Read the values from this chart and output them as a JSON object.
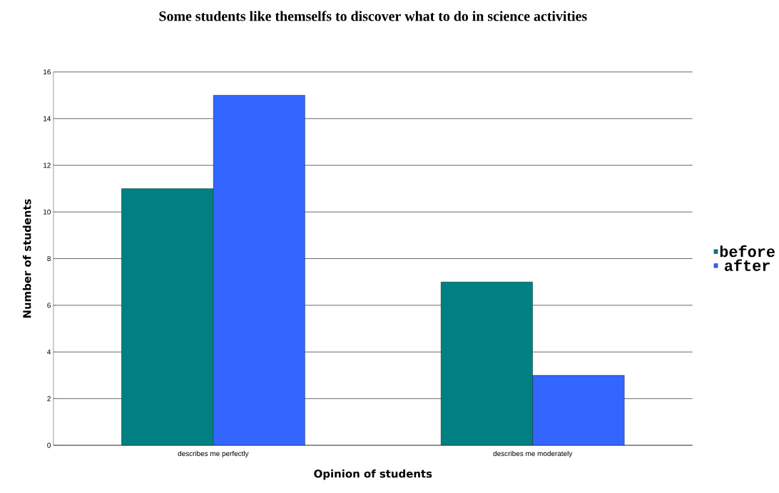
{
  "chart_data": {
    "type": "bar",
    "title": "Some students like themselfs to discover what to do in science activities",
    "xlabel": "Opinion of students",
    "ylabel": "Number of students",
    "categories": [
      "describes me perfectly",
      "describes me moderately"
    ],
    "series": [
      {
        "name": "before",
        "color": "#008080",
        "values": [
          11,
          7
        ]
      },
      {
        "name": "after",
        "color": "#3366ff",
        "values": [
          15,
          3
        ]
      }
    ],
    "ylim": [
      0,
      16
    ],
    "yticks": [
      0,
      2,
      4,
      6,
      8,
      10,
      12,
      14,
      16
    ],
    "grid": "y",
    "legend": "right"
  }
}
